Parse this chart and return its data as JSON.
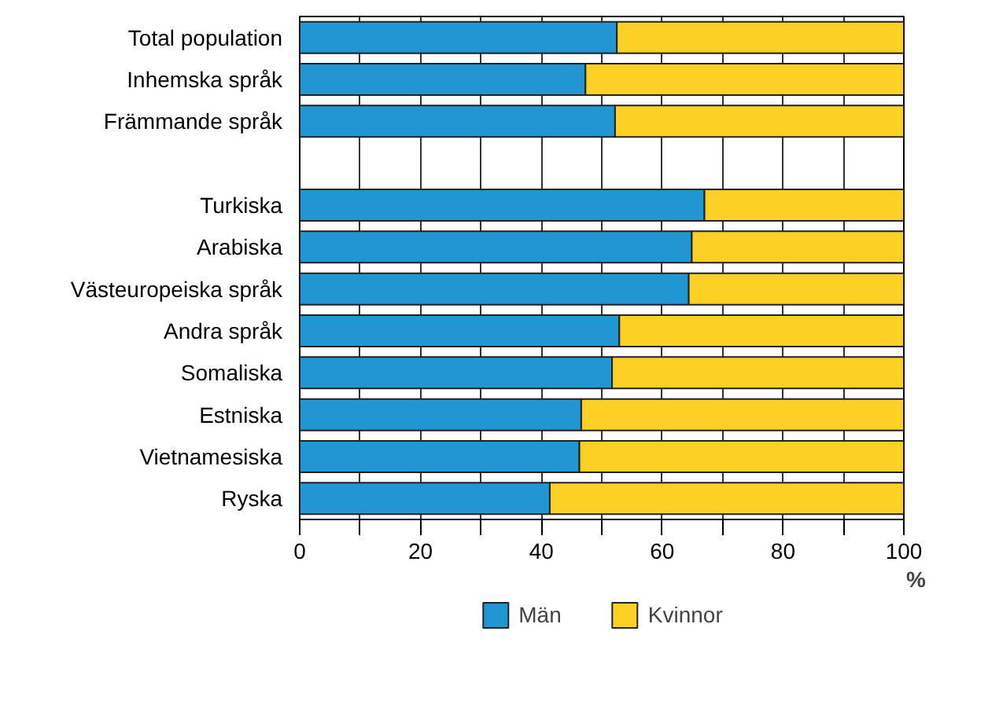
{
  "chart_data": {
    "type": "bar",
    "orientation": "horizontal",
    "stacked": true,
    "categories": [
      "Total population",
      "Inhemska språk",
      "Främmande språk",
      null,
      "Turkiska",
      "Arabiska",
      "Västeuropeiska språk",
      "Andra språk",
      "Somaliska",
      "Estniska",
      "Vietnamesiska",
      "Ryska"
    ],
    "series": [
      {
        "name": "Män",
        "color": "#2196d3",
        "values": [
          52.5,
          47.3,
          52.2,
          null,
          67.0,
          64.9,
          64.4,
          52.9,
          51.7,
          46.6,
          46.3,
          41.4
        ]
      },
      {
        "name": "Kvinnor",
        "color": "#f9d023",
        "values": [
          47.5,
          52.7,
          47.8,
          null,
          33.0,
          35.1,
          35.6,
          47.1,
          48.3,
          53.4,
          53.7,
          58.6
        ]
      }
    ],
    "xlabel": "%",
    "xlim": [
      0,
      100
    ],
    "xticks": [
      0,
      {
        "value": 10,
        "label": null
      },
      20,
      {
        "value": 30,
        "label": null
      },
      40,
      {
        "value": 50,
        "label": null
      },
      60,
      {
        "value": 70,
        "label": null
      },
      80,
      {
        "value": 90,
        "label": null
      },
      100
    ],
    "grid": "x",
    "legend": "bottom"
  }
}
